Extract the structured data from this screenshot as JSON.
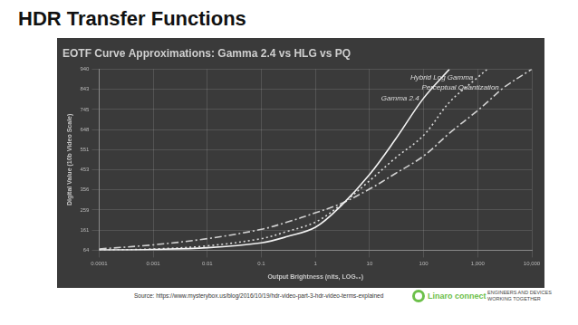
{
  "slide": {
    "title": "HDR Transfer Functions",
    "source": "Source: https://www.mysterybox.us/blog/2016/10/19/hdr-video-part-3-hdr-video-terms-explained",
    "logo": "Linaro connect",
    "tagline": "ENGINEERS AND DEVICES WORKING TOGETHER"
  },
  "chart_data": {
    "type": "line",
    "title": "EOTF Curve Approximations: Gamma 2.4 vs HLG vs PQ",
    "x_label": "Output Brightness (nits, LOG₁₀)",
    "y_label": "Digital Value (10b Video Scale)",
    "log": "x",
    "grid": true,
    "xlim": [
      0.0001,
      10000
    ],
    "ylim": [
      64,
      940
    ],
    "xticks": [
      0.0001,
      0.001,
      0.01,
      0.1,
      1,
      10,
      100,
      {
        "value": 1000,
        "label": "1,000"
      },
      {
        "value": 10000,
        "label": "10,000"
      }
    ],
    "yticks": [
      64,
      161,
      259,
      356,
      453,
      551,
      648,
      745,
      843,
      940
    ],
    "x": [
      0.0001,
      0.001,
      0.01,
      0.1,
      0.3,
      1,
      3,
      10,
      30,
      100,
      300,
      1000,
      1500,
      3000,
      10000
    ],
    "series": [
      {
        "name": "Gamma 2.4",
        "color": "#f2f2f2",
        "line_style": "solid",
        "values": [
          65,
          68,
          76,
          100,
          130,
          175,
          280,
          430,
          600,
          800,
          940,
          null,
          null,
          null,
          null
        ]
      },
      {
        "name": "Hybrid Log Gamma",
        "color": "#d8d8d8",
        "line_style": "dotted",
        "values": [
          64,
          70,
          85,
          120,
          155,
          200,
          285,
          400,
          510,
          620,
          780,
          900,
          940,
          null,
          null
        ]
      },
      {
        "name": "Perceptual Quantization",
        "color": "#d0d0d0",
        "line_style": "dashdot",
        "values": [
          70,
          90,
          120,
          165,
          200,
          245,
          290,
          360,
          435,
          520,
          630,
          740,
          780,
          850,
          940
        ]
      }
    ]
  }
}
